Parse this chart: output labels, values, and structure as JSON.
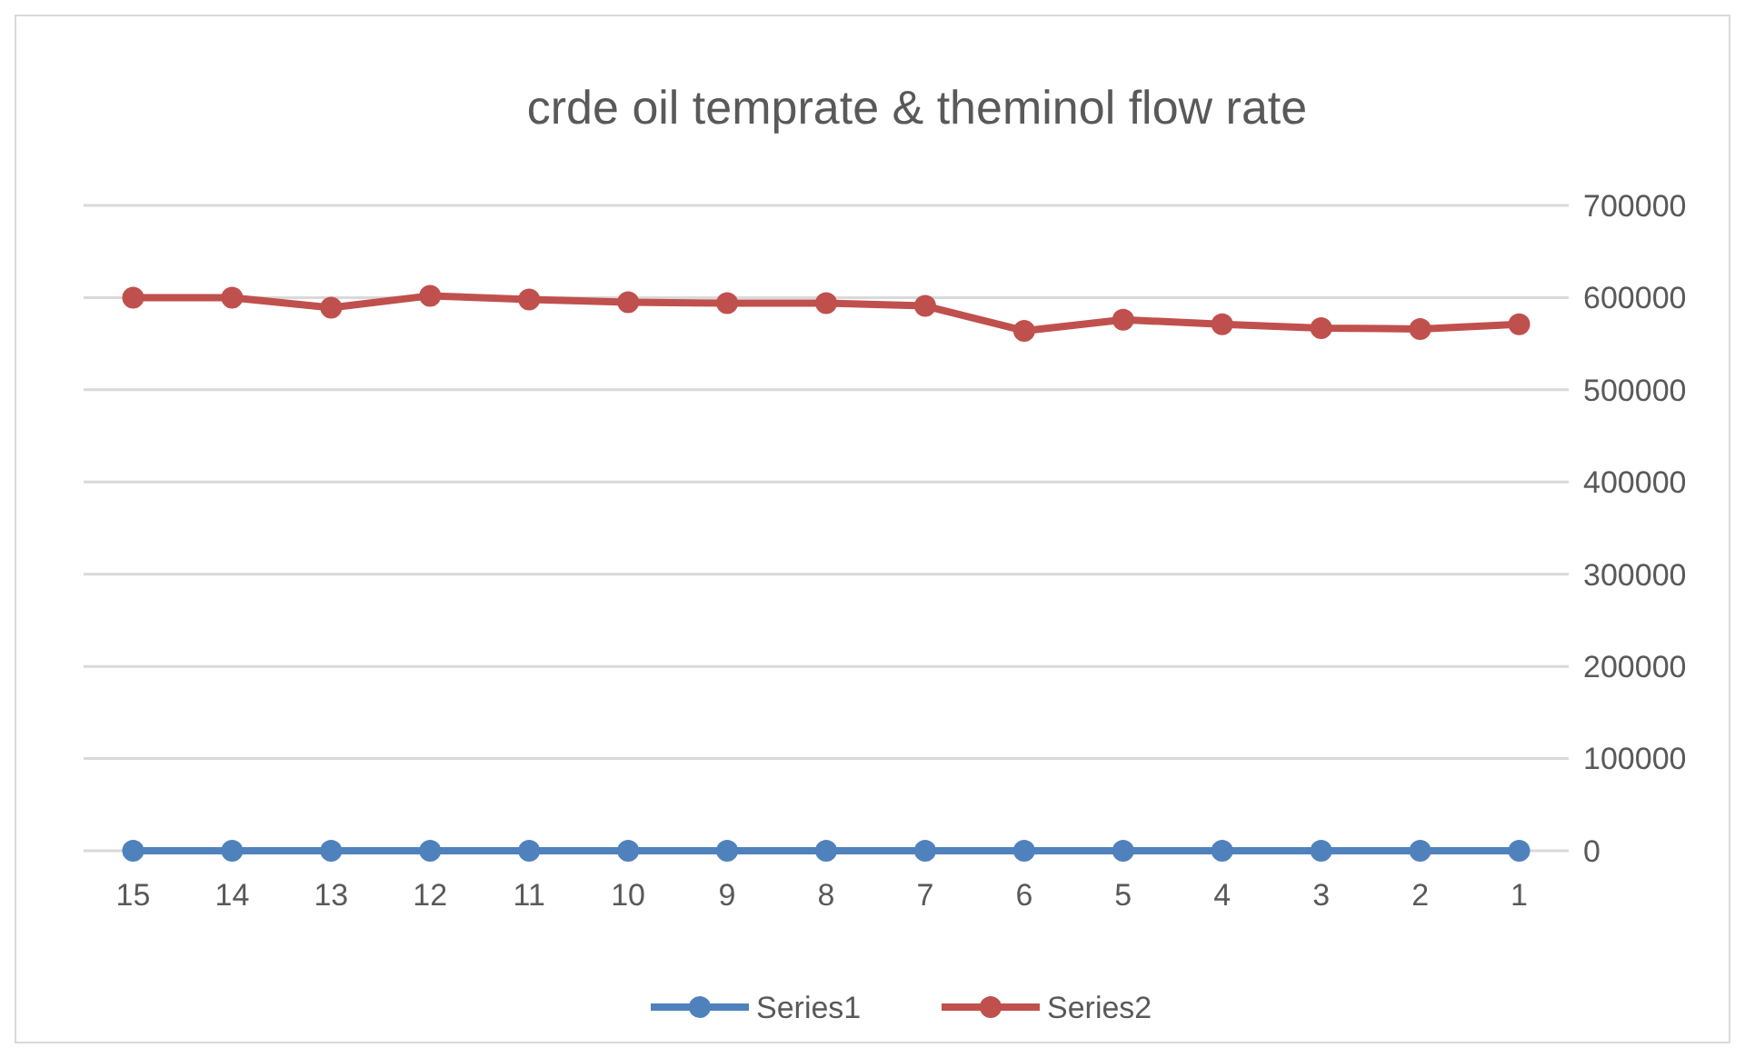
{
  "chart_data": {
    "type": "line",
    "title": "crde oil  temprate & theminol flow rate",
    "categories": [
      "15",
      "14",
      "13",
      "12",
      "11",
      "10",
      "9",
      "8",
      "7",
      "6",
      "5",
      "4",
      "3",
      "2",
      "1"
    ],
    "series": [
      {
        "name": "Series1",
        "color": "#4f81bd",
        "values": [
          0,
          0,
          0,
          0,
          0,
          0,
          0,
          0,
          0,
          0,
          0,
          0,
          0,
          0,
          0
        ]
      },
      {
        "name": "Series2",
        "color": "#c0504d",
        "values": [
          600000,
          600000,
          589000,
          602000,
          598000,
          595000,
          594000,
          594000,
          591000,
          564000,
          576000,
          571000,
          567000,
          566000,
          571000
        ]
      }
    ],
    "ylim": [
      0,
      700000
    ],
    "yticks": [
      0,
      100000,
      200000,
      300000,
      400000,
      500000,
      600000,
      700000
    ],
    "grid": "y",
    "legend": "bottom",
    "marker": "circle",
    "line_style": "solid"
  }
}
